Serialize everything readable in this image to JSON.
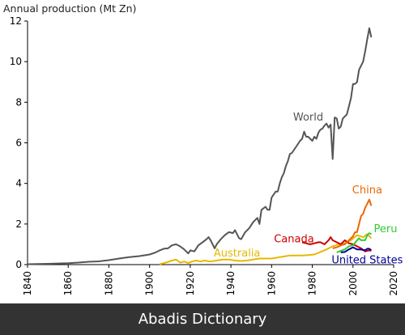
{
  "chart_data": {
    "type": "line",
    "title": "",
    "ylabel": "Annual production (Mt Zn)",
    "xlabel": "",
    "xlim": [
      1840,
      2020
    ],
    "ylim": [
      0,
      12
    ],
    "x_ticks": [
      "1840",
      "1860",
      "1880",
      "1900",
      "1920",
      "1940",
      "1960",
      "1980",
      "2000",
      "2020"
    ],
    "y_ticks": [
      "0",
      "2",
      "4",
      "6",
      "8",
      "10",
      "12"
    ],
    "grid": false,
    "series": [
      {
        "name": "World",
        "color": "#555555",
        "points": [
          [
            1840,
            0.02
          ],
          [
            1850,
            0.04
          ],
          [
            1860,
            0.07
          ],
          [
            1865,
            0.1
          ],
          [
            1870,
            0.14
          ],
          [
            1875,
            0.16
          ],
          [
            1880,
            0.22
          ],
          [
            1885,
            0.3
          ],
          [
            1890,
            0.37
          ],
          [
            1895,
            0.42
          ],
          [
            1900,
            0.5
          ],
          [
            1903,
            0.6
          ],
          [
            1905,
            0.7
          ],
          [
            1907,
            0.78
          ],
          [
            1909,
            0.8
          ],
          [
            1911,
            0.95
          ],
          [
            1913,
            1.0
          ],
          [
            1915,
            0.9
          ],
          [
            1917,
            0.75
          ],
          [
            1919,
            0.55
          ],
          [
            1920,
            0.7
          ],
          [
            1922,
            0.65
          ],
          [
            1924,
            0.95
          ],
          [
            1926,
            1.1
          ],
          [
            1928,
            1.25
          ],
          [
            1929,
            1.35
          ],
          [
            1930,
            1.2
          ],
          [
            1932,
            0.8
          ],
          [
            1933,
            1.0
          ],
          [
            1935,
            1.25
          ],
          [
            1937,
            1.45
          ],
          [
            1939,
            1.6
          ],
          [
            1941,
            1.55
          ],
          [
            1942,
            1.7
          ],
          [
            1944,
            1.3
          ],
          [
            1945,
            1.25
          ],
          [
            1947,
            1.6
          ],
          [
            1949,
            1.8
          ],
          [
            1951,
            2.1
          ],
          [
            1953,
            2.3
          ],
          [
            1954,
            2.0
          ],
          [
            1955,
            2.7
          ],
          [
            1957,
            2.85
          ],
          [
            1958,
            2.7
          ],
          [
            1959,
            2.7
          ],
          [
            1960,
            3.3
          ],
          [
            1962,
            3.6
          ],
          [
            1963,
            3.6
          ],
          [
            1964,
            4.0
          ],
          [
            1965,
            4.3
          ],
          [
            1966,
            4.5
          ],
          [
            1967,
            4.85
          ],
          [
            1968,
            5.1
          ],
          [
            1969,
            5.45
          ],
          [
            1970,
            5.5
          ],
          [
            1972,
            5.8
          ],
          [
            1974,
            6.1
          ],
          [
            1975,
            6.2
          ],
          [
            1976,
            6.55
          ],
          [
            1977,
            6.3
          ],
          [
            1978,
            6.3
          ],
          [
            1979,
            6.2
          ],
          [
            1980,
            6.1
          ],
          [
            1981,
            6.3
          ],
          [
            1982,
            6.2
          ],
          [
            1983,
            6.5
          ],
          [
            1984,
            6.65
          ],
          [
            1985,
            6.7
          ],
          [
            1986,
            6.85
          ],
          [
            1987,
            6.95
          ],
          [
            1988,
            6.75
          ],
          [
            1989,
            6.9
          ],
          [
            1990,
            5.2
          ],
          [
            1991,
            7.25
          ],
          [
            1992,
            7.2
          ],
          [
            1993,
            6.7
          ],
          [
            1994,
            6.8
          ],
          [
            1995,
            7.2
          ],
          [
            1996,
            7.3
          ],
          [
            1997,
            7.4
          ],
          [
            1998,
            7.8
          ],
          [
            1999,
            8.2
          ],
          [
            2000,
            8.9
          ],
          [
            2001,
            8.9
          ],
          [
            2002,
            9.0
          ],
          [
            2003,
            9.6
          ],
          [
            2004,
            9.8
          ],
          [
            2005,
            10.0
          ],
          [
            2006,
            10.5
          ],
          [
            2007,
            11.1
          ],
          [
            2008,
            11.65
          ],
          [
            2009,
            11.2
          ]
        ]
      },
      {
        "name": "Australia",
        "color": "#e6b800",
        "points": [
          [
            1905,
            0.02
          ],
          [
            1908,
            0.1
          ],
          [
            1911,
            0.2
          ],
          [
            1913,
            0.25
          ],
          [
            1915,
            0.1
          ],
          [
            1917,
            0.15
          ],
          [
            1919,
            0.08
          ],
          [
            1921,
            0.15
          ],
          [
            1923,
            0.2
          ],
          [
            1925,
            0.15
          ],
          [
            1927,
            0.2
          ],
          [
            1930,
            0.15
          ],
          [
            1933,
            0.2
          ],
          [
            1936,
            0.25
          ],
          [
            1939,
            0.25
          ],
          [
            1942,
            0.2
          ],
          [
            1945,
            0.18
          ],
          [
            1948,
            0.2
          ],
          [
            1951,
            0.25
          ],
          [
            1954,
            0.3
          ],
          [
            1957,
            0.3
          ],
          [
            1960,
            0.3
          ],
          [
            1963,
            0.35
          ],
          [
            1966,
            0.4
          ],
          [
            1969,
            0.45
          ],
          [
            1972,
            0.45
          ],
          [
            1975,
            0.45
          ],
          [
            1978,
            0.47
          ],
          [
            1981,
            0.5
          ],
          [
            1984,
            0.62
          ],
          [
            1987,
            0.75
          ],
          [
            1990,
            0.9
          ],
          [
            1993,
            1.0
          ],
          [
            1996,
            1.05
          ],
          [
            1999,
            1.2
          ],
          [
            2002,
            1.45
          ],
          [
            2005,
            1.35
          ],
          [
            2007,
            1.5
          ],
          [
            2009,
            1.3
          ]
        ]
      },
      {
        "name": "Canada",
        "color": "#cc0000",
        "points": [
          [
            1975,
            1.1
          ],
          [
            1977,
            1.05
          ],
          [
            1979,
            1.0
          ],
          [
            1981,
            1.05
          ],
          [
            1983,
            1.1
          ],
          [
            1984,
            1.1
          ],
          [
            1986,
            1.0
          ],
          [
            1988,
            1.2
          ],
          [
            1989,
            1.35
          ],
          [
            1990,
            1.2
          ],
          [
            1992,
            1.1
          ],
          [
            1994,
            1.0
          ],
          [
            1996,
            1.2
          ],
          [
            1998,
            1.05
          ],
          [
            2000,
            1.0
          ],
          [
            2002,
            0.9
          ],
          [
            2004,
            0.8
          ],
          [
            2006,
            0.65
          ],
          [
            2008,
            0.7
          ],
          [
            2009,
            0.68
          ]
        ]
      },
      {
        "name": "China",
        "color": "#ee6600",
        "points": [
          [
            1990,
            0.8
          ],
          [
            1992,
            0.85
          ],
          [
            1994,
            0.95
          ],
          [
            1996,
            1.0
          ],
          [
            1998,
            1.2
          ],
          [
            2000,
            1.4
          ],
          [
            2001,
            1.6
          ],
          [
            2002,
            1.6
          ],
          [
            2003,
            2.0
          ],
          [
            2004,
            2.4
          ],
          [
            2005,
            2.5
          ],
          [
            2006,
            2.8
          ],
          [
            2007,
            3.0
          ],
          [
            2008,
            3.2
          ],
          [
            2009,
            2.9
          ]
        ]
      },
      {
        "name": "Peru",
        "color": "#33cc33",
        "points": [
          [
            1992,
            0.6
          ],
          [
            1994,
            0.68
          ],
          [
            1996,
            0.75
          ],
          [
            1998,
            0.9
          ],
          [
            2000,
            0.95
          ],
          [
            2002,
            1.2
          ],
          [
            2003,
            1.3
          ],
          [
            2004,
            1.2
          ],
          [
            2005,
            1.2
          ],
          [
            2006,
            1.2
          ],
          [
            2007,
            1.45
          ],
          [
            2008,
            1.55
          ],
          [
            2009,
            1.5
          ]
        ]
      },
      {
        "name": "United States",
        "color": "#000099",
        "points": [
          [
            1994,
            0.6
          ],
          [
            1996,
            0.62
          ],
          [
            1998,
            0.75
          ],
          [
            2000,
            0.85
          ],
          [
            2001,
            0.8
          ],
          [
            2002,
            0.75
          ],
          [
            2003,
            0.75
          ],
          [
            2004,
            0.74
          ],
          [
            2005,
            0.72
          ],
          [
            2006,
            0.7
          ],
          [
            2007,
            0.78
          ],
          [
            2008,
            0.78
          ],
          [
            2009,
            0.7
          ]
        ]
      }
    ],
    "labels": [
      {
        "text": "World",
        "x": 1978,
        "y": 7.1,
        "color": "#555555"
      },
      {
        "text": "Australia",
        "x": 1943,
        "y": 0.4,
        "color": "#e6b800"
      },
      {
        "text": "Canada",
        "x": 1971,
        "y": 1.1,
        "color": "#cc0000"
      },
      {
        "text": "China",
        "x": 2007,
        "y": 3.5,
        "color": "#ee6600"
      },
      {
        "text": "Peru",
        "x": 2016,
        "y": 1.6,
        "color": "#33cc33"
      },
      {
        "text": "United States",
        "x": 2007,
        "y": 0.05,
        "color": "#000099"
      }
    ]
  },
  "footer": {
    "text": "Abadis Dictionary"
  }
}
